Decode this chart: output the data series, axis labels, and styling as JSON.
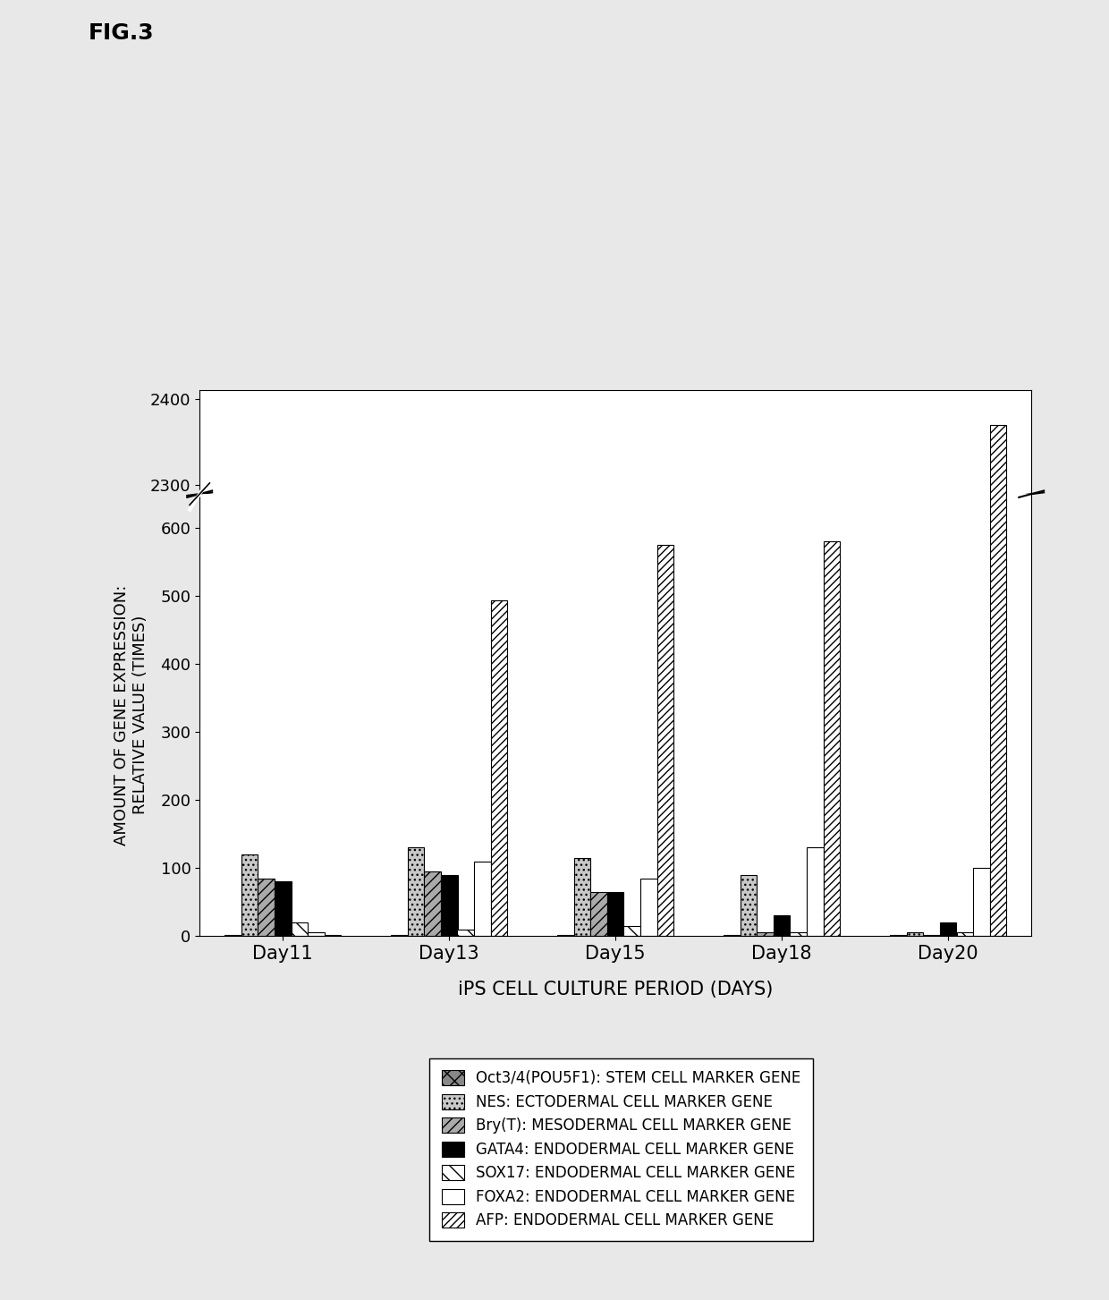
{
  "days": [
    "Day11",
    "Day13",
    "Day15",
    "Day18",
    "Day20"
  ],
  "series": {
    "Oct3/4(POU5F1)": {
      "values": [
        1,
        1,
        1,
        1,
        1
      ],
      "hatch": "xx",
      "facecolor": "#888888",
      "edgecolor": "#000000",
      "label": "Oct3/4(POU5F1): STEM CELL MARKER GENE"
    },
    "NES": {
      "values": [
        120,
        130,
        115,
        90,
        5
      ],
      "hatch": "...",
      "facecolor": "#cccccc",
      "edgecolor": "#000000",
      "label": "NES: ECTODERMAL CELL MARKER GENE"
    },
    "Bry(T)": {
      "values": [
        85,
        95,
        65,
        5,
        2
      ],
      "hatch": "///",
      "facecolor": "#bbbbbb",
      "edgecolor": "#000000",
      "label": "Bry(T): MESODERMAL CELL MARKER GENE"
    },
    "GATA4": {
      "values": [
        80,
        90,
        65,
        30,
        20
      ],
      "hatch": "",
      "facecolor": "#000000",
      "edgecolor": "#000000",
      "label": "GATA4: ENDODERMAL CELL MARKER GENE"
    },
    "SOX17": {
      "values": [
        20,
        10,
        15,
        5,
        5
      ],
      "hatch": "\\\\",
      "facecolor": "#ffffff",
      "edgecolor": "#000000",
      "label": "SOX17: ENDODERMAL CELL MARKER GENE"
    },
    "FOXA2": {
      "values": [
        5,
        110,
        85,
        130,
        100
      ],
      "hatch": "",
      "facecolor": "#ffffff",
      "edgecolor": "#000000",
      "label": "FOXA2: ENDODERMAL CELL MARKER GENE"
    },
    "AFP": {
      "values": [
        2,
        493,
        575,
        580,
        2370
      ],
      "hatch": "////",
      "facecolor": "#ffffff",
      "edgecolor": "#000000",
      "label": "AFP: ENDODERMAL CELL MARKER GENE"
    }
  },
  "title": "FIG.3",
  "xlabel": "iPS CELL CULTURE PERIOD (DAYS)",
  "ylabel": "AMOUNT OF GENE EXPRESSION:\nRELATIVE VALUE (TIMES)",
  "ylim_lower": [
    0,
    150
  ],
  "ylim_upper": [
    2290,
    2410
  ],
  "yticks_lower": [
    0,
    100
  ],
  "yticks_upper": [
    2300,
    2400
  ],
  "background": "#e8e8e8"
}
